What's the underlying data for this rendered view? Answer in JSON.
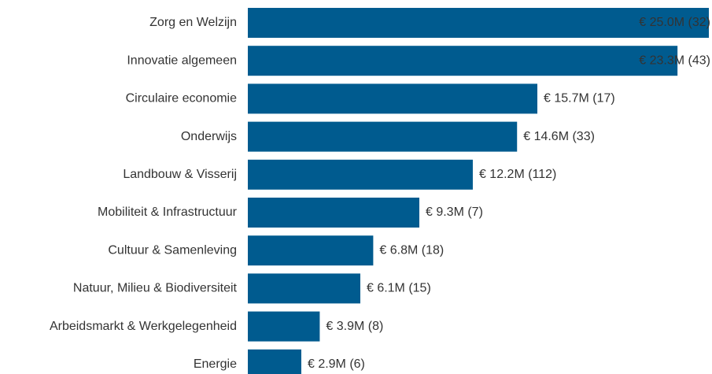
{
  "chart_data": {
    "type": "bar",
    "orientation": "horizontal",
    "color": "#005b8f",
    "categories": [
      "Zorg en Welzijn",
      "Innovatie algemeen",
      "Circulaire economie",
      "Onderwijs",
      "Landbouw & Visserij",
      "Mobiliteit & Infrastructuur",
      "Cultuur & Samenleving",
      "Natuur, Milieu & Biodiversiteit",
      "Arbeidsmarkt & Werkgelegenheid",
      "Energie"
    ],
    "values": [
      25.0,
      23.3,
      15.7,
      14.6,
      12.2,
      9.3,
      6.8,
      6.1,
      3.9,
      2.9
    ],
    "value_labels": [
      "€ 25.0M (32)",
      "€ 23.3M (43)",
      "€ 15.7M (17)",
      "€ 14.6M (33)",
      "€ 12.2M (112)",
      "€ 9.3M (7)",
      "€ 6.8M (18)",
      "€ 6.1M (15)",
      "€ 3.9M (8)",
      "€ 2.9M (6)"
    ],
    "xlim": [
      0,
      25
    ]
  }
}
